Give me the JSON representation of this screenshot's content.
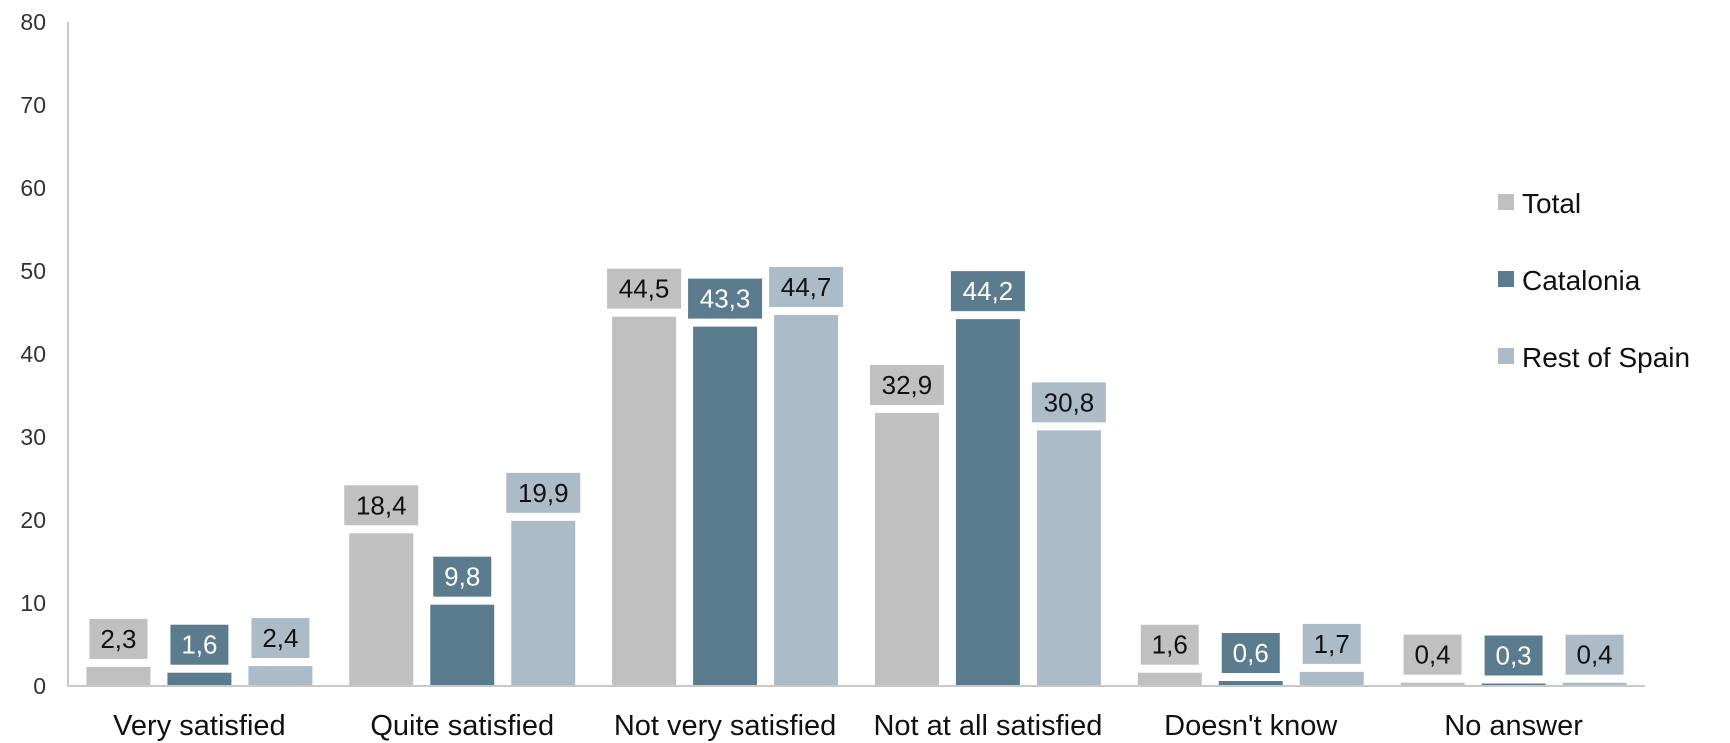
{
  "chart_data": {
    "type": "bar",
    "categories": [
      "Very satisfied",
      "Quite satisfied",
      "Not very satisfied",
      "Not at all satisfied",
      "Doesn't know",
      "No answer"
    ],
    "series": [
      {
        "name": "Total",
        "color": "#c0c0c0",
        "label_text_color": "#111111",
        "values": [
          2.3,
          18.4,
          44.5,
          32.9,
          1.6,
          0.4
        ],
        "labels": [
          "2,3",
          "18,4",
          "44,5",
          "32,9",
          "1,6",
          "0,4"
        ]
      },
      {
        "name": "Catalonia",
        "color": "#5b7b8f",
        "label_text_color": "#ffffff",
        "values": [
          1.6,
          9.8,
          43.3,
          44.2,
          0.6,
          0.3
        ],
        "labels": [
          "1,6",
          "9,8",
          "43,3",
          "44,2",
          "0,6",
          "0,3"
        ]
      },
      {
        "name": "Rest of Spain",
        "color": "#abbcc8",
        "label_text_color": "#111111",
        "values": [
          2.4,
          19.9,
          44.7,
          30.8,
          1.7,
          0.4
        ],
        "labels": [
          "2,4",
          "19,9",
          "44,7",
          "30,8",
          "1,7",
          "0,4"
        ]
      }
    ],
    "ylim": [
      0,
      80
    ],
    "yticks": [
      0,
      10,
      20,
      30,
      40,
      50,
      60,
      70,
      80
    ],
    "grid": false,
    "legend_position": "right",
    "title": "",
    "xlabel": "",
    "ylabel": ""
  }
}
